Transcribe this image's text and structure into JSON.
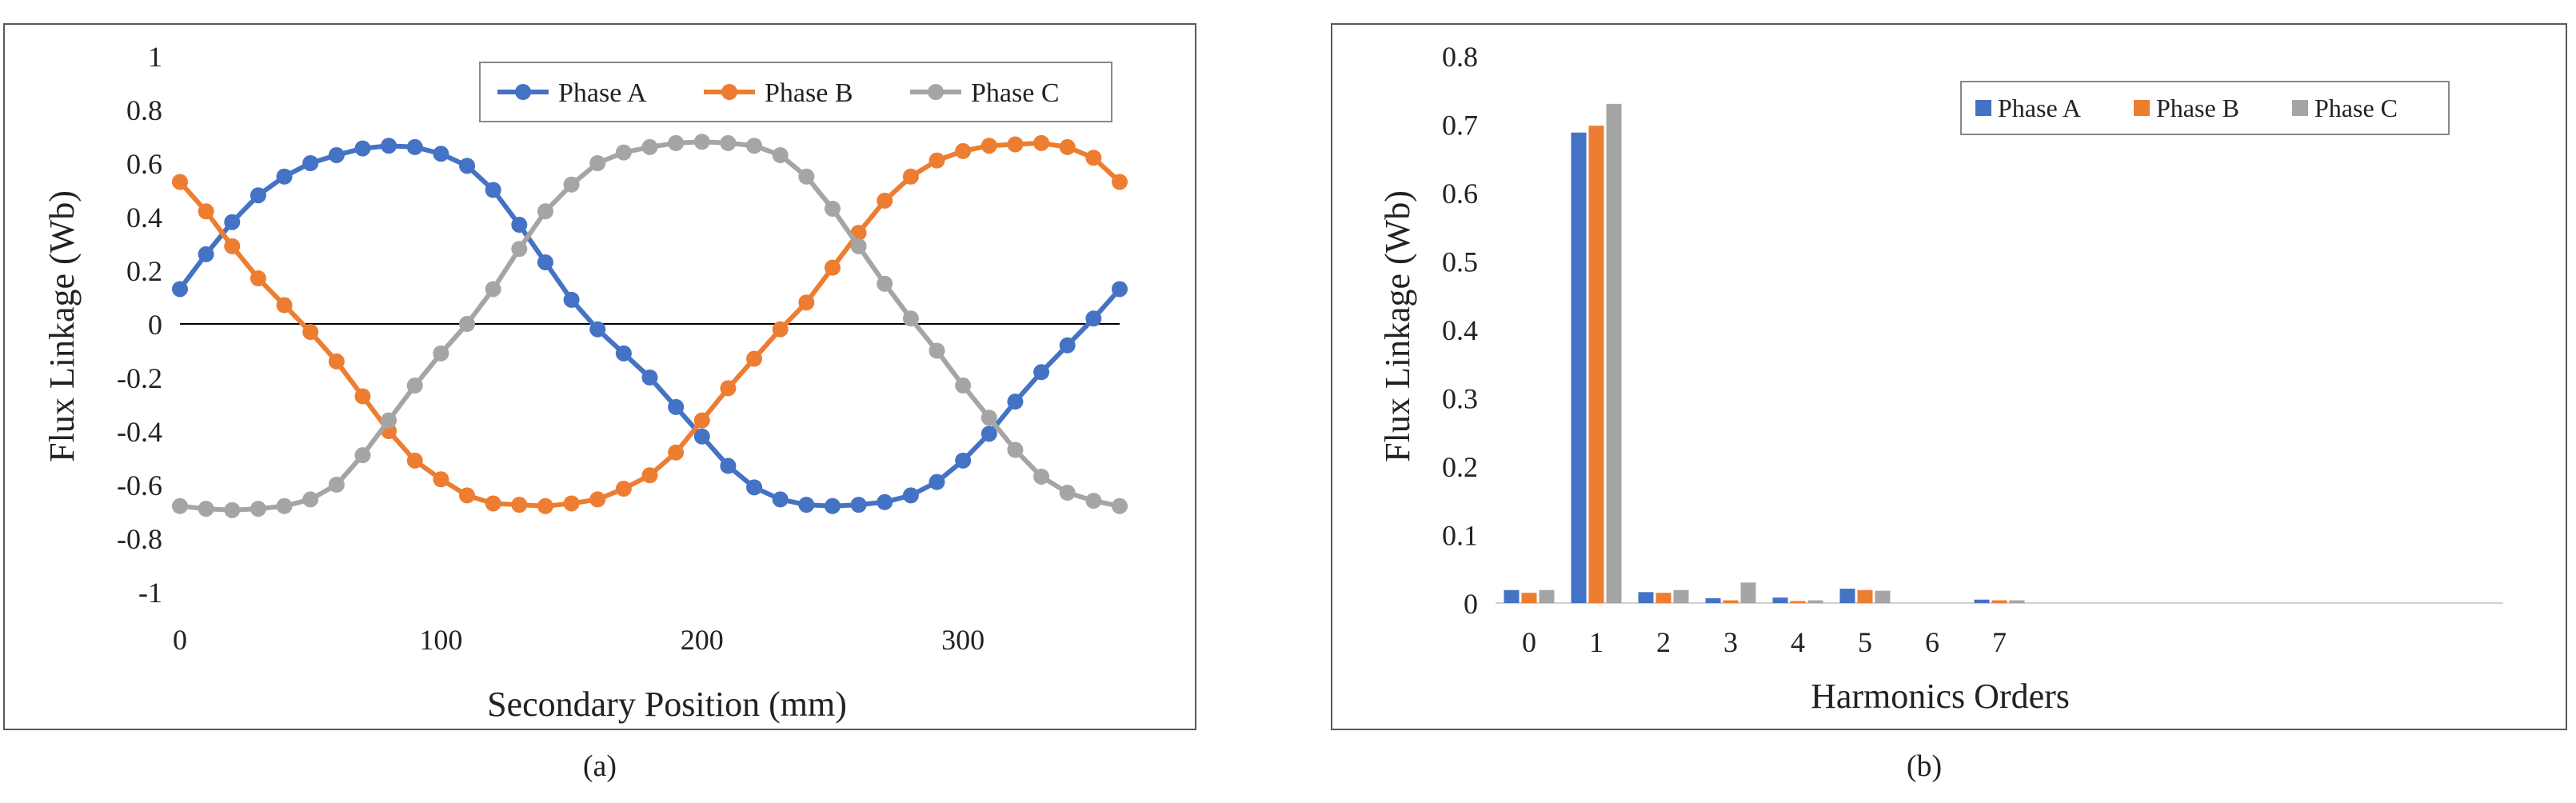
{
  "panel_labels": {
    "a": "(a)",
    "b": "(b)"
  },
  "colors": {
    "phase_a": "#4472C4",
    "phase_b": "#ED7D31",
    "phase_c": "#A5A5A5",
    "frame": "#595959",
    "zero_line": "#000000"
  },
  "chart_data": [
    {
      "id": "a",
      "type": "line",
      "title": "",
      "xlabel": "Secondary Position (mm)",
      "ylabel": "Flux Linkage (Wb)",
      "xlim": [
        0,
        360
      ],
      "ylim": [
        -1,
        1
      ],
      "x_ticks": [
        0,
        100,
        200,
        300
      ],
      "y_ticks": [
        1,
        0.8,
        0.6,
        0.4,
        0.2,
        0,
        -0.2,
        -0.4,
        -0.6,
        -0.8,
        -1
      ],
      "grid": false,
      "legend": "top-right",
      "x": [
        0,
        10,
        20,
        30,
        40,
        50,
        60,
        70,
        80,
        90,
        100,
        110,
        120,
        130,
        140,
        150,
        160,
        170,
        180,
        190,
        200,
        210,
        220,
        230,
        240,
        250,
        260,
        270,
        280,
        290,
        300,
        310,
        320,
        330,
        340,
        350,
        360
      ],
      "series": [
        {
          "name": "Phase A",
          "color_key": "phase_a",
          "values": [
            0.13,
            0.26,
            0.38,
            0.48,
            0.55,
            0.6,
            0.63,
            0.655,
            0.665,
            0.66,
            0.635,
            0.59,
            0.5,
            0.37,
            0.23,
            0.09,
            -0.02,
            -0.11,
            -0.2,
            -0.31,
            -0.42,
            -0.53,
            -0.61,
            -0.655,
            -0.675,
            -0.68,
            -0.675,
            -0.665,
            -0.64,
            -0.59,
            -0.51,
            -0.41,
            -0.29,
            -0.18,
            -0.08,
            0.02,
            0.13
          ]
        },
        {
          "name": "Phase B",
          "color_key": "phase_b",
          "values": [
            0.53,
            0.42,
            0.29,
            0.17,
            0.07,
            -0.03,
            -0.14,
            -0.27,
            -0.4,
            -0.51,
            -0.58,
            -0.64,
            -0.67,
            -0.675,
            -0.68,
            -0.67,
            -0.655,
            -0.615,
            -0.565,
            -0.48,
            -0.36,
            -0.24,
            -0.13,
            -0.02,
            0.08,
            0.21,
            0.34,
            0.46,
            0.55,
            0.61,
            0.645,
            0.665,
            0.67,
            0.675,
            0.66,
            0.62,
            0.53
          ]
        },
        {
          "name": "Phase C",
          "color_key": "phase_c",
          "values": [
            -0.68,
            -0.69,
            -0.695,
            -0.69,
            -0.68,
            -0.655,
            -0.6,
            -0.49,
            -0.36,
            -0.23,
            -0.11,
            0.0,
            0.13,
            0.28,
            0.42,
            0.52,
            0.6,
            0.64,
            0.66,
            0.675,
            0.68,
            0.675,
            0.665,
            0.63,
            0.55,
            0.43,
            0.29,
            0.15,
            0.02,
            -0.1,
            -0.23,
            -0.35,
            -0.47,
            -0.57,
            -0.63,
            -0.66,
            -0.68
          ]
        }
      ]
    },
    {
      "id": "b",
      "type": "bar",
      "title": "",
      "xlabel": "Harmonics Orders",
      "ylabel": "Flux Linkage (Wb)",
      "ylim": [
        0,
        0.8
      ],
      "y_ticks": [
        0.8,
        0.7,
        0.6,
        0.5,
        0.4,
        0.3,
        0.2,
        0.1,
        0
      ],
      "grid": false,
      "legend": "top-right",
      "categories": [
        "0",
        "1",
        "2",
        "3",
        "4",
        "5",
        "6",
        "7"
      ],
      "empty_slots_after": 7,
      "series": [
        {
          "name": "Phase A",
          "color_key": "phase_a",
          "values": [
            0.019,
            0.688,
            0.016,
            0.007,
            0.008,
            0.021,
            0.0,
            0.005
          ]
        },
        {
          "name": "Phase B",
          "color_key": "phase_b",
          "values": [
            0.015,
            0.698,
            0.015,
            0.004,
            0.003,
            0.019,
            0.0,
            0.004
          ]
        },
        {
          "name": "Phase C",
          "color_key": "phase_c",
          "values": [
            0.019,
            0.73,
            0.019,
            0.03,
            0.004,
            0.018,
            0.0,
            0.004
          ]
        }
      ]
    }
  ]
}
